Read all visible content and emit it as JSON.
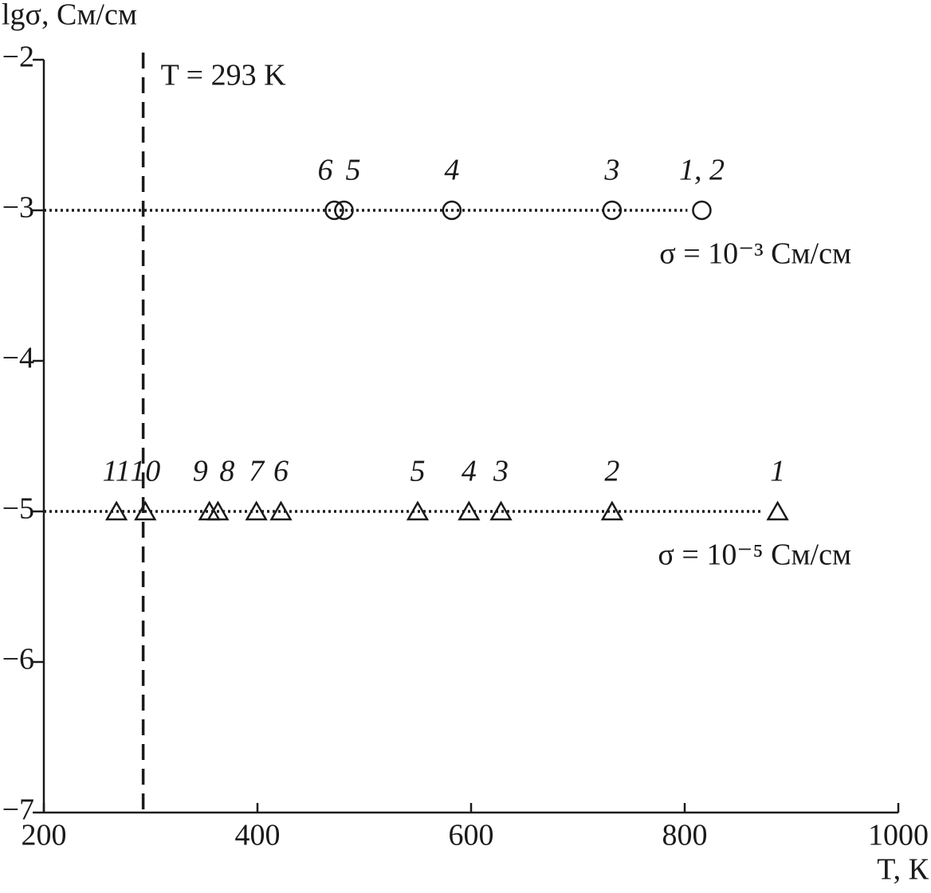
{
  "chart_data": {
    "type": "scatter",
    "y_label": "lgσ, См/см",
    "x_label": "T, К",
    "xlim": [
      200,
      1000
    ],
    "ylim": [
      -7,
      -2
    ],
    "xticks": [
      200,
      400,
      600,
      800,
      1000
    ],
    "yticks": [
      {
        "value": -2,
        "label": "−2"
      },
      {
        "value": -3,
        "label": "−3"
      },
      {
        "value": -4,
        "label": "−4"
      },
      {
        "value": -5,
        "label": "−5"
      },
      {
        "value": -6,
        "label": "−6"
      },
      {
        "value": -7,
        "label": "−7"
      }
    ],
    "vline": {
      "x": 293,
      "label": "T = 293 K"
    },
    "hlines": [
      {
        "y": -3,
        "label": "σ = 10⁻³ См/см"
      },
      {
        "y": -5,
        "label": "σ = 10⁻⁵ См/см"
      }
    ],
    "series": [
      {
        "marker": "circle",
        "color": "#1a1a1a",
        "x": [
          472,
          481,
          582,
          732,
          816
        ],
        "values": [
          -3,
          -3,
          -3,
          -3,
          -3
        ],
        "point_labels": [
          "6",
          "5",
          "4",
          "3",
          "1, 2"
        ]
      },
      {
        "marker": "triangle",
        "color": "#1a1a1a",
        "x": [
          268,
          295,
          355,
          363,
          399,
          422,
          550,
          598,
          628,
          732,
          887
        ],
        "values": [
          -5,
          -5,
          -5,
          -5,
          -5,
          -5,
          -5,
          -5,
          -5,
          -5,
          -5
        ],
        "point_labels": [
          "11",
          "10",
          "9",
          "8",
          "7",
          "6",
          "5",
          "4",
          "3",
          "2",
          "1"
        ]
      }
    ]
  }
}
